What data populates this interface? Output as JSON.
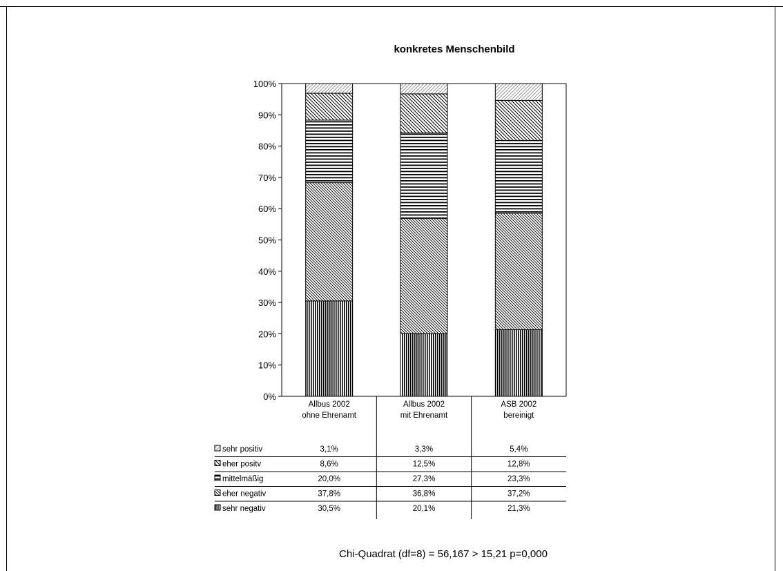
{
  "chart_data": {
    "type": "bar",
    "stacked": true,
    "percent": true,
    "title": "konkretes Menschenbild",
    "xlabel": "",
    "ylabel": "",
    "ylim": [
      0,
      100
    ],
    "yticks": [
      "0%",
      "10%",
      "20%",
      "30%",
      "40%",
      "50%",
      "60%",
      "70%",
      "80%",
      "90%",
      "100%"
    ],
    "grid": false,
    "legend_placement": "data table below chart",
    "categories": [
      [
        "Allbus 2002",
        "ohne Ehrenamt"
      ],
      [
        "Allbus 2002",
        "mit Ehrenamt"
      ],
      [
        "ASB 2002",
        "bereinigt"
      ]
    ],
    "series": [
      {
        "name": "sehr negativ",
        "pattern": "vertical",
        "values": [
          30.5,
          20.1,
          21.3
        ],
        "labels": [
          "30,5%",
          "20,1%",
          "21,3%"
        ]
      },
      {
        "name": "eher negativ",
        "pattern": "diag-dense",
        "values": [
          37.8,
          36.8,
          37.2
        ],
        "labels": [
          "37,8%",
          "36,8%",
          "37,2%"
        ]
      },
      {
        "name": "mittelmäßig",
        "pattern": "horizontal",
        "values": [
          20.0,
          27.3,
          23.3
        ],
        "labels": [
          "20,0%",
          "27,3%",
          "23,3%"
        ]
      },
      {
        "name": "eher positv",
        "pattern": "diag-medium",
        "values": [
          8.6,
          12.5,
          12.8
        ],
        "labels": [
          "8,6%",
          "12,5%",
          "12,8%"
        ]
      },
      {
        "name": "sehr positiv",
        "pattern": "diag-light",
        "values": [
          3.1,
          3.3,
          5.4
        ],
        "labels": [
          "3,1%",
          "3,3%",
          "5,4%"
        ]
      }
    ],
    "table_row_order": [
      "sehr positiv",
      "eher positv",
      "mittelmäßig",
      "eher negativ",
      "sehr negativ"
    ],
    "footnote": "Chi-Quadrat (df=8) = 56,167 > 15,21  p=0,000"
  },
  "colors": {
    "ink": "#000000",
    "background": "#ffffff"
  }
}
